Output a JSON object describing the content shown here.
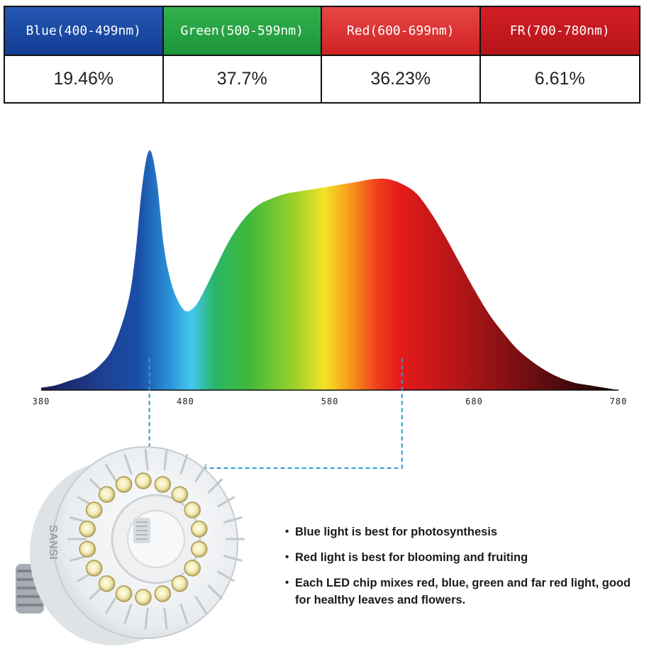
{
  "table": {
    "headers": [
      "Blue(400-499nm)",
      "Green(500-599nm)",
      "Red(600-699nm)",
      "FR(700-780nm)"
    ],
    "values": [
      "19.46%",
      "37.7%",
      "36.23%",
      "6.61%"
    ],
    "header_colors": [
      "#1c4aa3",
      "#27a443",
      "#dc3434",
      "#c4181e"
    ]
  },
  "chart_data": {
    "type": "area",
    "title": "",
    "xlabel": "",
    "ylabel": "",
    "xlim": [
      380,
      780
    ],
    "x_ticks": [
      380,
      480,
      580,
      680,
      780
    ],
    "x": [
      380,
      390,
      400,
      410,
      420,
      430,
      440,
      445,
      450,
      455,
      460,
      465,
      470,
      475,
      480,
      485,
      490,
      500,
      510,
      520,
      530,
      540,
      550,
      560,
      570,
      580,
      590,
      600,
      610,
      620,
      630,
      640,
      650,
      660,
      670,
      680,
      690,
      700,
      710,
      720,
      730,
      740,
      750,
      760,
      770,
      780
    ],
    "y": [
      0.01,
      0.02,
      0.04,
      0.06,
      0.1,
      0.18,
      0.36,
      0.55,
      0.85,
      1.0,
      0.88,
      0.6,
      0.45,
      0.37,
      0.33,
      0.34,
      0.38,
      0.5,
      0.62,
      0.71,
      0.77,
      0.8,
      0.82,
      0.83,
      0.84,
      0.85,
      0.86,
      0.87,
      0.88,
      0.88,
      0.86,
      0.82,
      0.74,
      0.64,
      0.53,
      0.42,
      0.32,
      0.24,
      0.17,
      0.12,
      0.08,
      0.05,
      0.03,
      0.02,
      0.01,
      0.0
    ],
    "ylim": [
      0,
      1
    ],
    "grid": false,
    "markers": [
      455,
      630
    ]
  },
  "bullets": [
    "Blue light is best for photosynthesis",
    "Red light is best for blooming and fruiting",
    "Each LED chip mixes red, blue, green and far red light, good for healthy leaves and flowers."
  ],
  "bullet_symbol": "•",
  "brand": "SANSI"
}
